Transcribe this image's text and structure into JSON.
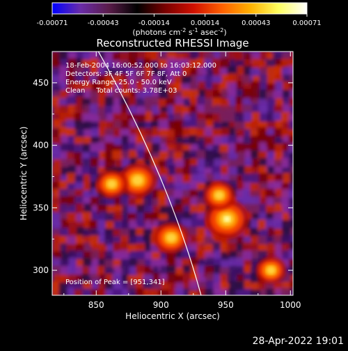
{
  "colorbar": {
    "tick_labels": [
      "-0.00071",
      "-0.00043",
      "-0.00014",
      "0.00014",
      "0.00043",
      "0.00071"
    ],
    "unit_parts": [
      "(photons cm",
      "-2",
      " s",
      "-1",
      " asec",
      "-2",
      ")"
    ],
    "colors": [
      "#0000ff",
      "#6a2ca8",
      "#5a1c4a",
      "#000000",
      "#7a0000",
      "#d01000",
      "#ff6000",
      "#ffb000",
      "#ffff60",
      "#ffffff"
    ]
  },
  "chart_data": {
    "type": "heatmap",
    "title": "Reconstructed RHESSI Image",
    "xlabel": "Heliocentric X (arcsec)",
    "ylabel": "Heliocentric Y (arcsec)",
    "xlim": [
      816,
      1002
    ],
    "ylim": [
      280,
      475
    ],
    "xticks": [
      850,
      900,
      950,
      1000
    ],
    "yticks": [
      300,
      350,
      400,
      450
    ],
    "x_tick_labels": [
      "850",
      "900",
      "950",
      "1000"
    ],
    "y_tick_labels": [
      "300",
      "350",
      "400",
      "450"
    ],
    "limb_arc": [
      [
        850,
        478
      ],
      [
        905,
        378
      ],
      [
        931,
        280
      ]
    ],
    "annotations": [
      "18-Feb-2004 16:00:52.000 to 16:03:12.000",
      "Detectors: 3F 4F 5F 6F 7F 8F, Att 0",
      "Energy Range: 25.0 - 50.0 keV",
      "Clean     Total counts: 3.78E+03"
    ],
    "peak_label": "Position of Peak = [951,341]",
    "peak_position": [
      951,
      341
    ],
    "hot_spots": [
      {
        "x": 951,
        "y": 341,
        "level": 1.0
      },
      {
        "x": 882,
        "y": 372,
        "level": 0.8
      },
      {
        "x": 908,
        "y": 326,
        "level": 0.7
      },
      {
        "x": 862,
        "y": 369,
        "level": 0.6
      },
      {
        "x": 945,
        "y": 360,
        "level": 0.6
      },
      {
        "x": 985,
        "y": 300,
        "level": 0.55
      }
    ]
  },
  "timestamp": "28-Apr-2022 19:01"
}
